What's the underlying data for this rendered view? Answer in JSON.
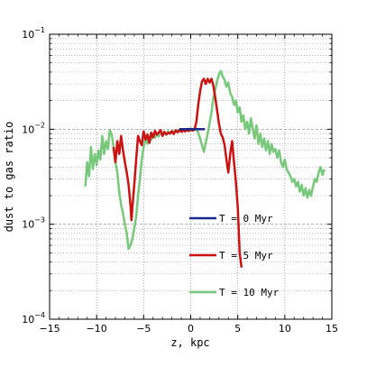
{
  "chart_data": {
    "type": "line",
    "xlabel": "z, kpc",
    "ylabel": "dust to gas ratio",
    "xlim": [
      -15,
      15
    ],
    "ylim": [
      0.0001,
      0.1
    ],
    "yscale": "log",
    "xticks": [
      -15,
      -10,
      -5,
      0,
      5,
      10,
      15
    ],
    "xtick_labels": [
      "−15",
      "−10",
      "−5",
      "0",
      "5",
      "10",
      "15"
    ],
    "yticks": [
      {
        "value": 0.1,
        "base": "10",
        "exp": "−1"
      },
      {
        "value": 0.01,
        "base": "10",
        "exp": "−2"
      },
      {
        "value": 0.001,
        "base": "10",
        "exp": "−3"
      },
      {
        "value": 0.0001,
        "base": "10",
        "exp": "−4"
      }
    ],
    "grid": true,
    "legend_position": "lower-right",
    "series": [
      {
        "name": "T = 0 Myr",
        "color": "#1a2a8c",
        "x": [
          -1.2,
          1.5
        ],
        "y": [
          0.01,
          0.01
        ]
      },
      {
        "name": "T = 5 Myr",
        "color": "#cc1111",
        "x": [
          -8.2,
          -8.0,
          -7.8,
          -7.6,
          -7.4,
          -7.2,
          -7.0,
          -6.8,
          -6.6,
          -6.4,
          -6.3,
          -6.2,
          -6.0,
          -5.8,
          -5.6,
          -5.4,
          -5.2,
          -5.0,
          -4.8,
          -4.6,
          -4.4,
          -4.2,
          -4.0,
          -3.8,
          -3.6,
          -3.4,
          -3.2,
          -3.0,
          -2.8,
          -2.6,
          -2.4,
          -2.2,
          -2.0,
          -1.8,
          -1.6,
          -1.4,
          -1.2,
          -1.0,
          -0.8,
          -0.6,
          -0.4,
          -0.2,
          0.0,
          0.2,
          0.4,
          0.6,
          0.8,
          1.0,
          1.2,
          1.4,
          1.6,
          1.8,
          2.0,
          2.2,
          2.4,
          2.6,
          2.8,
          3.0,
          3.2,
          3.4,
          3.6,
          3.8,
          4.0,
          4.2,
          4.4,
          4.6,
          4.8,
          5.0,
          5.2,
          5.4
        ],
        "y": [
          0.0065,
          0.0045,
          0.0075,
          0.0055,
          0.0085,
          0.006,
          0.0045,
          0.0035,
          0.0026,
          0.0016,
          0.0011,
          0.0015,
          0.0026,
          0.0048,
          0.0085,
          0.0075,
          0.0068,
          0.0095,
          0.0078,
          0.0088,
          0.0072,
          0.0092,
          0.0082,
          0.0096,
          0.0088,
          0.0092,
          0.0098,
          0.0085,
          0.0094,
          0.0088,
          0.0092,
          0.009,
          0.0095,
          0.0089,
          0.0097,
          0.0093,
          0.0098,
          0.0094,
          0.0097,
          0.0095,
          0.0098,
          0.0096,
          0.0099,
          0.0097,
          0.0099,
          0.012,
          0.018,
          0.025,
          0.032,
          0.034,
          0.03,
          0.034,
          0.031,
          0.034,
          0.029,
          0.022,
          0.016,
          0.0115,
          0.009,
          0.0082,
          0.0068,
          0.0048,
          0.0035,
          0.0055,
          0.0075,
          0.0045,
          0.0028,
          0.0015,
          0.0005,
          0.00035
        ]
      },
      {
        "name": "T = 10 Myr",
        "color": "#77c87b",
        "x": [
          -11.2,
          -11.0,
          -10.8,
          -10.6,
          -10.4,
          -10.2,
          -10.0,
          -9.8,
          -9.6,
          -9.4,
          -9.2,
          -9.0,
          -8.8,
          -8.6,
          -8.4,
          -8.2,
          -8.0,
          -7.8,
          -7.6,
          -7.4,
          -7.2,
          -7.0,
          -6.8,
          -6.6,
          -6.4,
          -6.2,
          -6.0,
          -5.8,
          -5.6,
          -5.4,
          -5.2,
          -5.0,
          -4.8,
          -4.6,
          -4.4,
          -4.2,
          -4.0,
          -3.8,
          -3.6,
          -3.4,
          -3.2,
          -3.0,
          -2.8,
          -2.6,
          -2.4,
          -2.2,
          -2.0,
          -1.8,
          -1.6,
          -1.4,
          -1.2,
          -1.0,
          -0.8,
          -0.6,
          -0.4,
          -0.2,
          0.0,
          0.2,
          0.4,
          0.6,
          0.8,
          1.0,
          1.2,
          1.4,
          1.6,
          1.8,
          2.0,
          2.2,
          2.4,
          2.6,
          2.8,
          3.0,
          3.2,
          3.4,
          3.6,
          3.8,
          4.0,
          4.2,
          4.4,
          4.6,
          4.8,
          5.0,
          5.2,
          5.4,
          5.6,
          5.8,
          6.0,
          6.2,
          6.4,
          6.6,
          6.8,
          7.0,
          7.2,
          7.4,
          7.6,
          7.8,
          8.0,
          8.2,
          8.4,
          8.6,
          8.8,
          9.0,
          9.2,
          9.4,
          9.6,
          9.8,
          10.0,
          10.2,
          10.4,
          10.6,
          10.8,
          11.0,
          11.2,
          11.4,
          11.6,
          11.8,
          12.0,
          12.2,
          12.4,
          12.6,
          12.8,
          13.0,
          13.2,
          13.4,
          13.6,
          13.8,
          14.0,
          14.2
        ],
        "y": [
          0.0025,
          0.0045,
          0.0032,
          0.0065,
          0.0038,
          0.0055,
          0.0042,
          0.006,
          0.0048,
          0.0085,
          0.0055,
          0.0075,
          0.0062,
          0.0098,
          0.0088,
          0.0065,
          0.0045,
          0.0035,
          0.0022,
          0.0016,
          0.0013,
          0.001,
          0.0008,
          0.00055,
          0.0006,
          0.0007,
          0.0009,
          0.0012,
          0.002,
          0.003,
          0.0048,
          0.0065,
          0.008,
          0.007,
          0.0085,
          0.0078,
          0.009,
          0.0082,
          0.0088,
          0.0084,
          0.0092,
          0.0087,
          0.0093,
          0.0089,
          0.0095,
          0.0091,
          0.0096,
          0.0093,
          0.0098,
          0.0095,
          0.0099,
          0.0097,
          0.01,
          0.0098,
          0.0101,
          0.0099,
          0.0102,
          0.0098,
          0.0103,
          0.01,
          0.0092,
          0.008,
          0.0068,
          0.0058,
          0.0072,
          0.009,
          0.0115,
          0.015,
          0.021,
          0.026,
          0.032,
          0.038,
          0.041,
          0.036,
          0.033,
          0.028,
          0.031,
          0.024,
          0.022,
          0.018,
          0.02,
          0.015,
          0.017,
          0.012,
          0.014,
          0.01,
          0.012,
          0.009,
          0.013,
          0.01,
          0.008,
          0.011,
          0.007,
          0.009,
          0.0065,
          0.008,
          0.006,
          0.0075,
          0.0055,
          0.007,
          0.0058,
          0.0062,
          0.005,
          0.006,
          0.0045,
          0.004,
          0.0048,
          0.0038,
          0.0035,
          0.0032,
          0.0028,
          0.003,
          0.0025,
          0.0028,
          0.0022,
          0.0026,
          0.002,
          0.0024,
          0.0019,
          0.0023,
          0.002,
          0.0025,
          0.003,
          0.0028,
          0.0035,
          0.004,
          0.0033,
          0.0038
        ]
      }
    ]
  }
}
